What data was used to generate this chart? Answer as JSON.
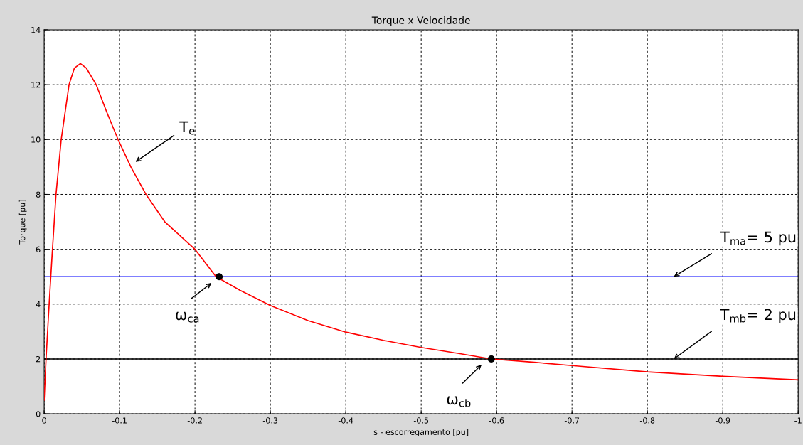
{
  "chart_data": {
    "type": "line",
    "title": "Torque x Velocidade",
    "xlabel": "s - escorregamento [pu]",
    "ylabel": "Torque [pu]",
    "xlim": [
      0,
      -1
    ],
    "xticks": [
      0,
      -0.1,
      -0.2,
      -0.3,
      -0.4,
      -0.5,
      -0.6,
      -0.7,
      -0.8,
      -0.9,
      -1
    ],
    "ylim": [
      0,
      14
    ],
    "yticks": [
      0,
      2,
      4,
      6,
      8,
      10,
      12,
      14
    ],
    "grid": true,
    "line_style": "solid",
    "series": [
      {
        "color": "#ff0000",
        "marker": "none",
        "x": [
          0,
          -0.0025,
          -0.0066,
          -0.011,
          -0.0157,
          -0.0226,
          -0.033,
          -0.04,
          -0.048,
          -0.056,
          -0.069,
          -0.083,
          -0.098,
          -0.115,
          -0.135,
          -0.16,
          -0.2,
          -0.228,
          -0.26,
          -0.3,
          -0.35,
          -0.4,
          -0.45,
          -0.5,
          -0.55,
          -0.593,
          -0.65,
          -0.7,
          -0.8,
          -0.9,
          -1
        ],
        "values": [
          0.5,
          2,
          4,
          6,
          8,
          10,
          12,
          12.6,
          12.77,
          12.6,
          12,
          11,
          10,
          9,
          8,
          7,
          6,
          5,
          4.5,
          3.95,
          3.4,
          2.98,
          2.68,
          2.42,
          2.2,
          2.0,
          1.88,
          1.76,
          1.53,
          1.37,
          1.24
        ]
      },
      {
        "type": "scatter",
        "color": "#000000",
        "marker": "circle",
        "x": [
          -0.232,
          -0.593
        ],
        "values": [
          5,
          2
        ]
      }
    ],
    "ref_lines": [
      {
        "axis": "y",
        "value": 5,
        "color": "#0000ff",
        "line_style": "solid",
        "label": "T$_{ma}$= 5 pu"
      },
      {
        "axis": "y",
        "value": 2,
        "color": "#000000",
        "line_style": "solid",
        "label": "T$_{mb}$= 2 pu"
      }
    ],
    "annotations": [
      "T$_{e}$",
      "ω$_{ca}$",
      "ω$_{cb}$"
    ]
  }
}
